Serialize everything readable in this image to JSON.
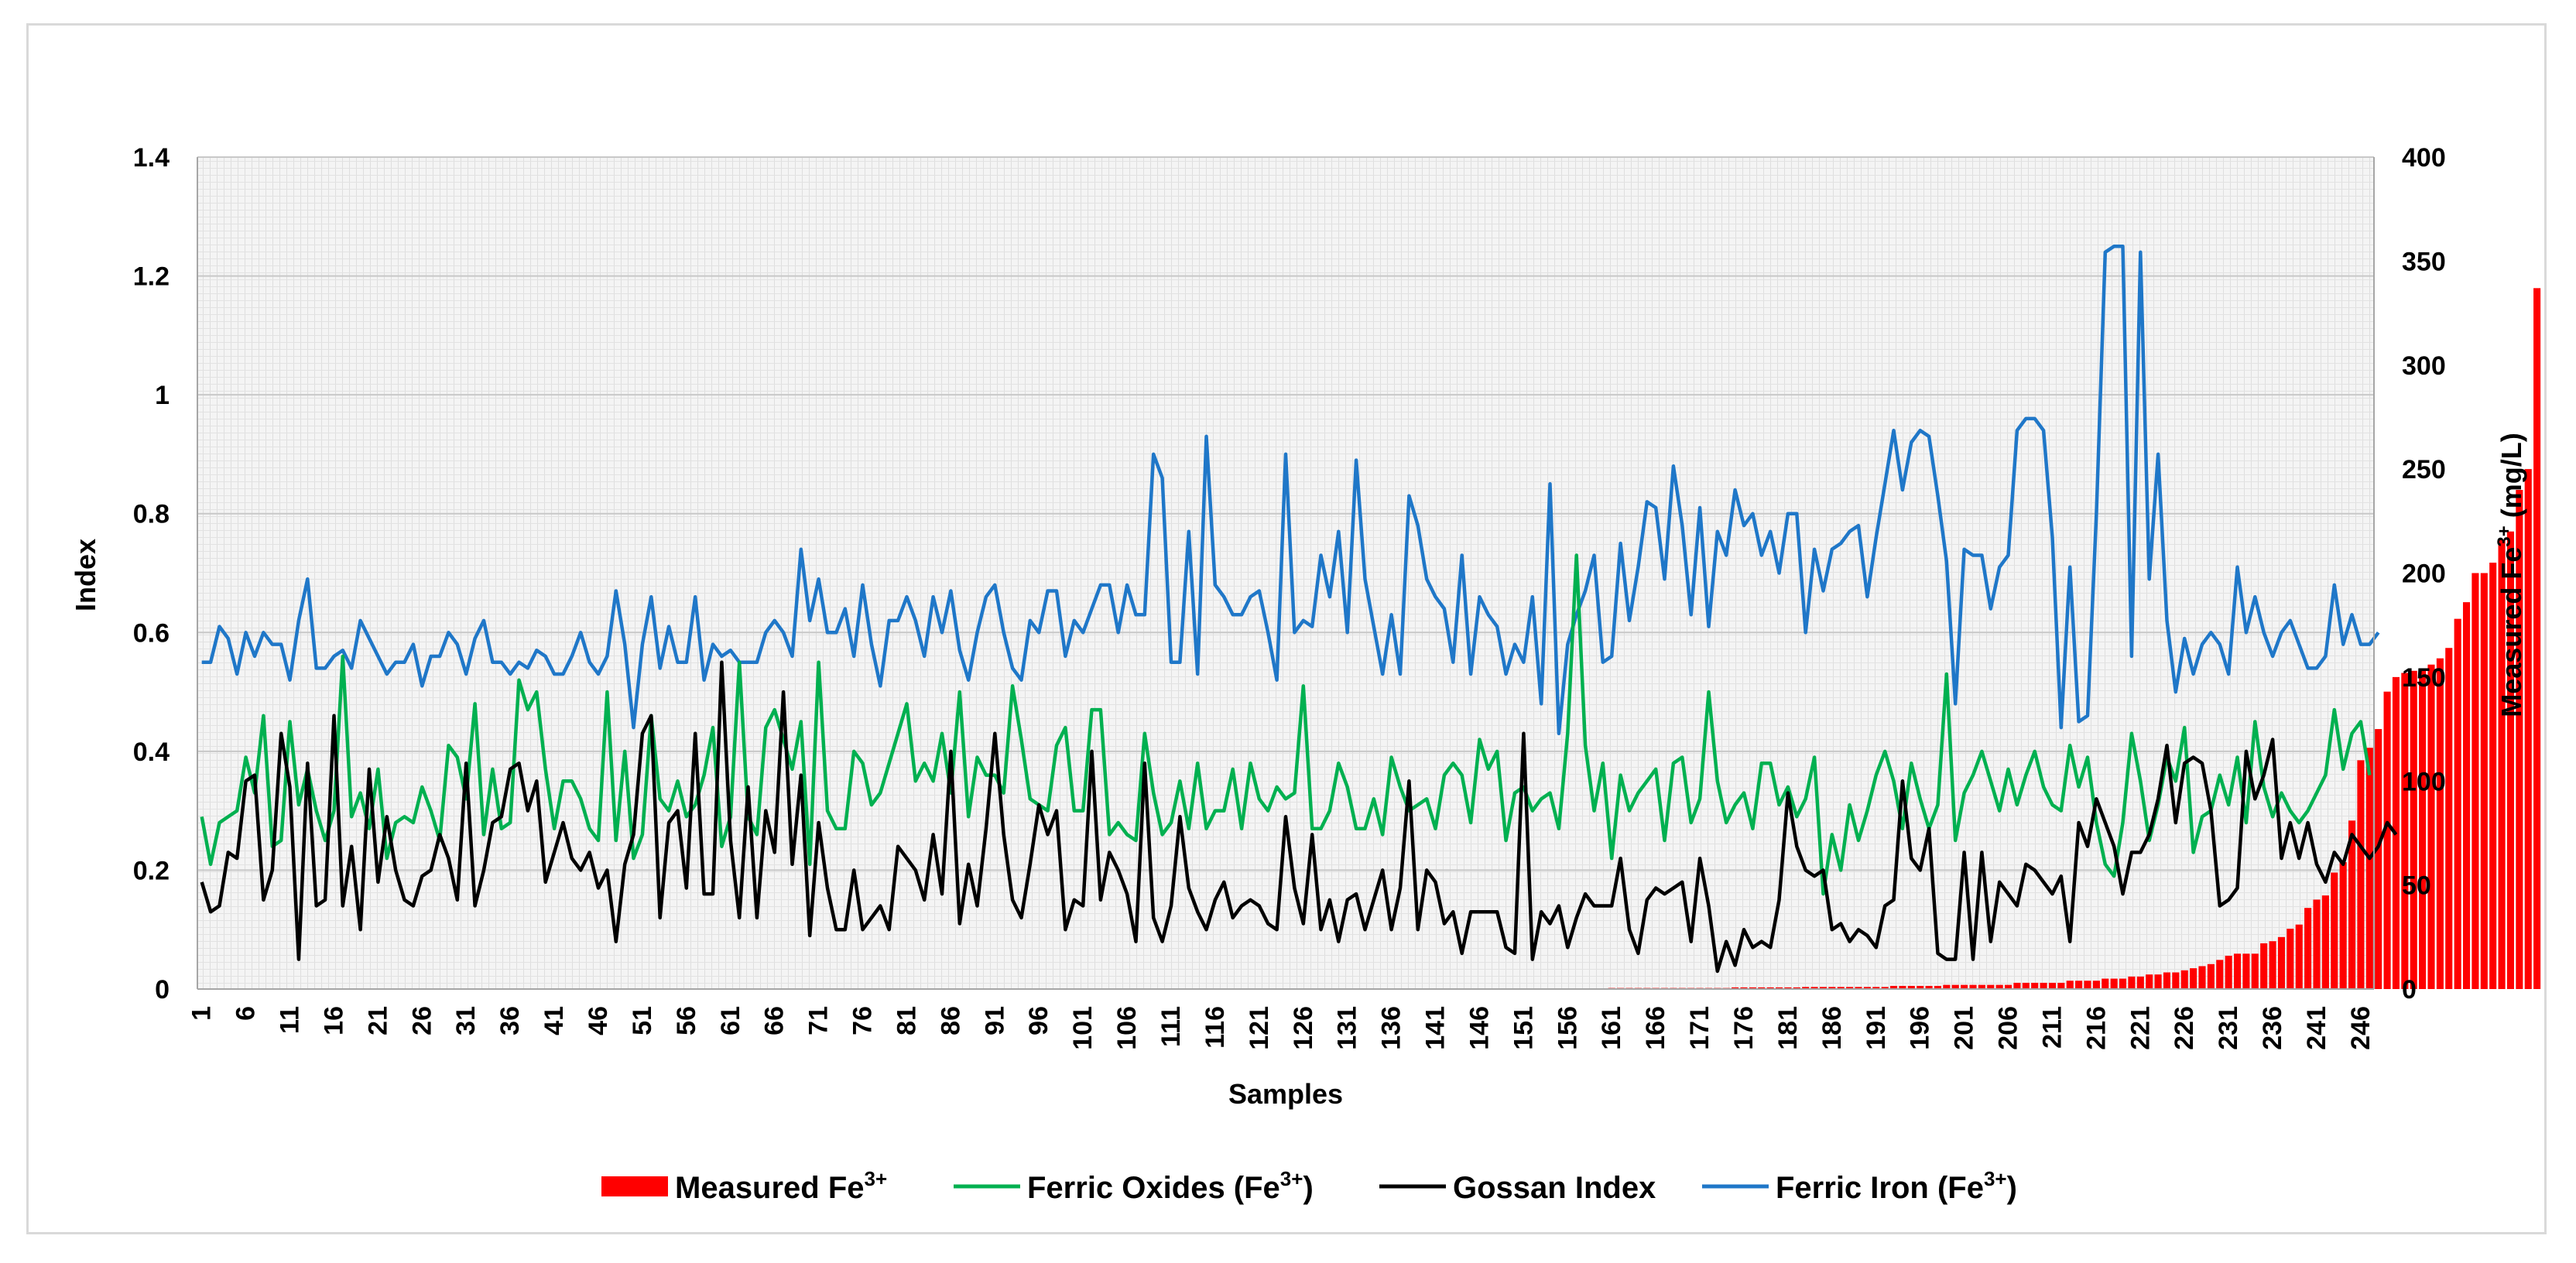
{
  "chart_data": {
    "type": "bar+line",
    "title": "",
    "xlabel": "Samples",
    "ylabel": "Index",
    "y2label": "Measured Fe3+ (mg/L)",
    "y2label_parts": [
      "Measured Fe",
      "3+",
      " (mg/L)"
    ],
    "ylim": [
      0,
      1.4
    ],
    "y2lim": [
      0,
      400
    ],
    "yticks": [
      "0",
      "0.2",
      "0.4",
      "0.6",
      "0.8",
      "1",
      "1.2",
      "1.4"
    ],
    "y2ticks": [
      "0",
      "50",
      "100",
      "150",
      "200",
      "250",
      "300",
      "350",
      "400"
    ],
    "x_count": 247,
    "x_tick_step": 5,
    "x_tick_labels": [
      "1",
      "6",
      "11",
      "16",
      "21",
      "26",
      "31",
      "36",
      "41",
      "46",
      "51",
      "56",
      "61",
      "66",
      "71",
      "76",
      "81",
      "86",
      "91",
      "96",
      "101",
      "106",
      "111",
      "116",
      "121",
      "126",
      "131",
      "136",
      "141",
      "146",
      "151",
      "156",
      "161",
      "166",
      "171",
      "176",
      "181",
      "186",
      "191",
      "196",
      "201",
      "206",
      "211",
      "216",
      "221",
      "226",
      "231",
      "236",
      "241",
      "246"
    ],
    "grid": "on",
    "legend_position": "bottom",
    "legend": [
      {
        "name": "Measured Fe",
        "sup": "3+",
        "suffix": "",
        "kind": "bar",
        "color": "#ff0000"
      },
      {
        "name": "Ferric Oxides (Fe",
        "sup": "3+",
        "suffix": ")",
        "kind": "line",
        "color": "#00b050"
      },
      {
        "name": "Gossan Index",
        "sup": "",
        "suffix": "",
        "kind": "line",
        "color": "#000000"
      },
      {
        "name": "Ferric Iron (Fe",
        "sup": "3+",
        "suffix": ")",
        "kind": "line",
        "color": "#1f77c8"
      }
    ],
    "series": [
      {
        "name": "Ferric Iron (Fe3+)",
        "axis": "left",
        "color": "#1f77c8",
        "values": [
          0.55,
          0.55,
          0.61,
          0.59,
          0.53,
          0.6,
          0.56,
          0.6,
          0.58,
          0.58,
          0.52,
          0.62,
          0.69,
          0.54,
          0.54,
          0.56,
          0.57,
          0.54,
          0.62,
          0.59,
          0.56,
          0.53,
          0.55,
          0.55,
          0.58,
          0.51,
          0.56,
          0.56,
          0.6,
          0.58,
          0.53,
          0.59,
          0.62,
          0.55,
          0.55,
          0.53,
          0.55,
          0.54,
          0.57,
          0.56,
          0.53,
          0.53,
          0.56,
          0.6,
          0.55,
          0.53,
          0.56,
          0.67,
          0.58,
          0.44,
          0.58,
          0.66,
          0.54,
          0.61,
          0.55,
          0.55,
          0.66,
          0.52,
          0.58,
          0.56,
          0.57,
          0.55,
          0.55,
          0.55,
          0.6,
          0.62,
          0.6,
          0.56,
          0.74,
          0.62,
          0.69,
          0.6,
          0.6,
          0.64,
          0.56,
          0.68,
          0.58,
          0.51,
          0.62,
          0.62,
          0.66,
          0.62,
          0.56,
          0.66,
          0.6,
          0.67,
          0.57,
          0.52,
          0.6,
          0.66,
          0.68,
          0.6,
          0.54,
          0.52,
          0.62,
          0.6,
          0.67,
          0.67,
          0.56,
          0.62,
          0.6,
          0.64,
          0.68,
          0.68,
          0.6,
          0.68,
          0.63,
          0.63,
          0.9,
          0.86,
          0.55,
          0.55,
          0.77,
          0.53,
          0.93,
          0.68,
          0.66,
          0.63,
          0.63,
          0.66,
          0.67,
          0.6,
          0.52,
          0.9,
          0.6,
          0.62,
          0.61,
          0.73,
          0.66,
          0.77,
          0.6,
          0.89,
          0.69,
          0.61,
          0.53,
          0.63,
          0.53,
          0.83,
          0.78,
          0.69,
          0.66,
          0.64,
          0.55,
          0.73,
          0.53,
          0.66,
          0.63,
          0.61,
          0.53,
          0.58,
          0.55,
          0.66,
          0.48,
          0.85,
          0.43,
          0.58,
          0.63,
          0.67,
          0.73,
          0.55,
          0.56,
          0.75,
          0.62,
          0.71,
          0.82,
          0.81,
          0.69,
          0.88,
          0.78,
          0.63,
          0.81,
          0.61,
          0.77,
          0.73,
          0.84,
          0.78,
          0.8,
          0.73,
          0.77,
          0.7,
          0.8,
          0.8,
          0.6,
          0.74,
          0.67,
          0.74,
          0.75,
          0.77,
          0.78,
          0.66,
          0.76,
          0.85,
          0.94,
          0.84,
          0.92,
          0.94,
          0.93,
          0.83,
          0.72,
          0.48,
          0.74,
          0.73,
          0.73,
          0.64,
          0.71,
          0.73,
          0.94,
          0.96,
          0.96,
          0.94,
          0.76,
          0.44,
          0.71,
          0.45,
          0.46,
          0.8,
          1.24,
          1.25,
          1.25,
          0.56,
          1.24,
          0.69,
          0.9,
          0.62,
          0.5,
          0.59,
          0.53,
          0.58,
          0.6,
          0.58,
          0.53,
          0.71,
          0.6,
          0.66,
          0.6,
          0.56,
          0.6,
          0.62,
          0.58,
          0.54,
          0.54,
          0.56,
          0.68,
          0.58,
          0.63,
          0.58,
          0.58,
          0.6
        ]
      },
      {
        "name": "Ferric Oxides (Fe3+)",
        "axis": "left",
        "color": "#00b050",
        "values": [
          0.29,
          0.21,
          0.28,
          0.29,
          0.3,
          0.39,
          0.33,
          0.46,
          0.24,
          0.25,
          0.45,
          0.31,
          0.37,
          0.3,
          0.25,
          0.3,
          0.56,
          0.29,
          0.33,
          0.27,
          0.37,
          0.22,
          0.28,
          0.29,
          0.28,
          0.34,
          0.3,
          0.25,
          0.41,
          0.39,
          0.32,
          0.48,
          0.26,
          0.37,
          0.27,
          0.28,
          0.52,
          0.47,
          0.5,
          0.37,
          0.27,
          0.35,
          0.35,
          0.32,
          0.27,
          0.25,
          0.5,
          0.25,
          0.4,
          0.22,
          0.26,
          0.46,
          0.32,
          0.3,
          0.35,
          0.29,
          0.31,
          0.36,
          0.44,
          0.24,
          0.29,
          0.55,
          0.29,
          0.26,
          0.44,
          0.47,
          0.42,
          0.37,
          0.45,
          0.21,
          0.55,
          0.3,
          0.27,
          0.27,
          0.4,
          0.38,
          0.31,
          0.33,
          0.38,
          0.43,
          0.48,
          0.35,
          0.38,
          0.35,
          0.43,
          0.33,
          0.5,
          0.29,
          0.39,
          0.36,
          0.36,
          0.33,
          0.51,
          0.42,
          0.32,
          0.31,
          0.3,
          0.41,
          0.44,
          0.3,
          0.3,
          0.47,
          0.47,
          0.26,
          0.28,
          0.26,
          0.25,
          0.43,
          0.33,
          0.26,
          0.28,
          0.35,
          0.27,
          0.38,
          0.27,
          0.3,
          0.3,
          0.37,
          0.27,
          0.38,
          0.32,
          0.3,
          0.34,
          0.32,
          0.33,
          0.51,
          0.27,
          0.27,
          0.3,
          0.38,
          0.34,
          0.27,
          0.27,
          0.32,
          0.26,
          0.39,
          0.34,
          0.3,
          0.31,
          0.32,
          0.27,
          0.36,
          0.38,
          0.36,
          0.28,
          0.42,
          0.37,
          0.4,
          0.25,
          0.33,
          0.34,
          0.3,
          0.32,
          0.33,
          0.27,
          0.43,
          0.73,
          0.41,
          0.3,
          0.38,
          0.22,
          0.36,
          0.3,
          0.33,
          0.35,
          0.37,
          0.25,
          0.38,
          0.39,
          0.28,
          0.32,
          0.5,
          0.35,
          0.28,
          0.31,
          0.33,
          0.27,
          0.38,
          0.38,
          0.31,
          0.34,
          0.29,
          0.32,
          0.39,
          0.16,
          0.26,
          0.2,
          0.31,
          0.25,
          0.3,
          0.36,
          0.4,
          0.35,
          0.27,
          0.38,
          0.32,
          0.27,
          0.31,
          0.53,
          0.25,
          0.33,
          0.36,
          0.4,
          0.35,
          0.3,
          0.37,
          0.31,
          0.36,
          0.4,
          0.34,
          0.31,
          0.3,
          0.41,
          0.34,
          0.39,
          0.28,
          0.21,
          0.19,
          0.28,
          0.43,
          0.35,
          0.25,
          0.31,
          0.39,
          0.35,
          0.44,
          0.23,
          0.29,
          0.3,
          0.36,
          0.31,
          0.39,
          0.28,
          0.45,
          0.34,
          0.29,
          0.33,
          0.3,
          0.28,
          0.3,
          0.33,
          0.36,
          0.47,
          0.37,
          0.43,
          0.45,
          0.36
        ]
      },
      {
        "name": "Gossan Index",
        "axis": "left",
        "color": "#000000",
        "values": [
          0.18,
          0.13,
          0.14,
          0.23,
          0.22,
          0.35,
          0.36,
          0.15,
          0.2,
          0.43,
          0.34,
          0.05,
          0.38,
          0.14,
          0.15,
          0.46,
          0.14,
          0.24,
          0.1,
          0.37,
          0.18,
          0.29,
          0.2,
          0.15,
          0.14,
          0.19,
          0.2,
          0.26,
          0.22,
          0.15,
          0.38,
          0.14,
          0.2,
          0.28,
          0.29,
          0.37,
          0.38,
          0.3,
          0.35,
          0.18,
          0.23,
          0.28,
          0.22,
          0.2,
          0.23,
          0.17,
          0.2,
          0.08,
          0.21,
          0.26,
          0.43,
          0.46,
          0.12,
          0.28,
          0.3,
          0.17,
          0.43,
          0.16,
          0.16,
          0.55,
          0.25,
          0.12,
          0.34,
          0.12,
          0.3,
          0.23,
          0.5,
          0.21,
          0.36,
          0.09,
          0.28,
          0.17,
          0.1,
          0.1,
          0.2,
          0.1,
          0.12,
          0.14,
          0.1,
          0.24,
          0.22,
          0.2,
          0.15,
          0.26,
          0.16,
          0.4,
          0.11,
          0.21,
          0.14,
          0.27,
          0.43,
          0.26,
          0.15,
          0.12,
          0.21,
          0.31,
          0.26,
          0.3,
          0.1,
          0.15,
          0.14,
          0.4,
          0.15,
          0.23,
          0.2,
          0.16,
          0.08,
          0.38,
          0.12,
          0.08,
          0.14,
          0.29,
          0.17,
          0.13,
          0.1,
          0.15,
          0.18,
          0.12,
          0.14,
          0.15,
          0.14,
          0.11,
          0.1,
          0.29,
          0.17,
          0.11,
          0.26,
          0.1,
          0.15,
          0.08,
          0.15,
          0.16,
          0.1,
          0.15,
          0.2,
          0.1,
          0.17,
          0.35,
          0.1,
          0.2,
          0.18,
          0.11,
          0.13,
          0.06,
          0.13,
          0.13,
          0.13,
          0.13,
          0.07,
          0.06,
          0.43,
          0.05,
          0.13,
          0.11,
          0.14,
          0.07,
          0.12,
          0.16,
          0.14,
          0.14,
          0.14,
          0.22,
          0.1,
          0.06,
          0.15,
          0.17,
          0.16,
          0.17,
          0.18,
          0.08,
          0.22,
          0.14,
          0.03,
          0.08,
          0.04,
          0.1,
          0.07,
          0.08,
          0.07,
          0.15,
          0.33,
          0.24,
          0.2,
          0.19,
          0.2,
          0.1,
          0.11,
          0.08,
          0.1,
          0.09,
          0.07,
          0.14,
          0.15,
          0.35,
          0.22,
          0.2,
          0.27,
          0.06,
          0.05,
          0.05,
          0.23,
          0.05,
          0.23,
          0.08,
          0.18,
          0.16,
          0.14,
          0.21,
          0.2,
          0.18,
          0.16,
          0.19,
          0.08,
          0.28,
          0.24,
          0.32,
          0.28,
          0.24,
          0.16,
          0.23,
          0.23,
          0.26,
          0.32,
          0.41,
          0.28,
          0.38,
          0.39,
          0.38,
          0.3,
          0.14,
          0.15,
          0.17,
          0.4,
          0.32,
          0.36,
          0.42,
          0.22,
          0.28,
          0.22,
          0.28,
          0.21,
          0.18,
          0.23,
          0.21,
          0.26,
          0.24,
          0.22,
          0.24,
          0.28,
          0.26
        ]
      },
      {
        "name": "Measured Fe3+",
        "axis": "right",
        "color": "#ff0000",
        "kind": "bar",
        "values": [
          0.1,
          0.1,
          0.1,
          0.1,
          0.1,
          0.1,
          0.1,
          0.1,
          0.1,
          0.1,
          0.1,
          0.1,
          0.1,
          0.1,
          0.1,
          0.1,
          0.1,
          0.1,
          0.1,
          0.1,
          0.1,
          0.1,
          0.1,
          0.1,
          0.1,
          0.1,
          0.1,
          0.1,
          0.1,
          0.1,
          0.1,
          0.1,
          0.1,
          0.1,
          0.1,
          0.1,
          0.1,
          0.1,
          0.1,
          0.1,
          0.1,
          0.1,
          0.1,
          0.1,
          0.1,
          0.1,
          0.1,
          0.1,
          0.1,
          0.1,
          0.1,
          0.1,
          0.1,
          0.1,
          0.1,
          0.1,
          0.1,
          0.1,
          0.1,
          0.1,
          0.1,
          0.1,
          0.1,
          0.1,
          0.1,
          0.1,
          0.1,
          0.1,
          0.1,
          0.1,
          0.1,
          0.1,
          0.1,
          0.1,
          0.1,
          0.1,
          0.1,
          0.1,
          0.1,
          0.1,
          0.1,
          0.1,
          0.1,
          0.1,
          0.1,
          0.1,
          0.1,
          0.1,
          0.1,
          0.1,
          0.1,
          0.1,
          0.1,
          0.1,
          0.1,
          0.1,
          0.1,
          0.1,
          0.1,
          0.1,
          0.1,
          0.1,
          0.1,
          0.1,
          0.1,
          0.1,
          0.1,
          0.1,
          0.1,
          0.1,
          0.1,
          0.1,
          0.1,
          0.1,
          0.1,
          0.1,
          0.1,
          0.1,
          0.1,
          0.1,
          0.1,
          0.1,
          0.1,
          0.1,
          0.1,
          0.1,
          0.1,
          0.1,
          0.1,
          0.1,
          0.1,
          0.1,
          0.1,
          0.1,
          0.1,
          0.1,
          0.1,
          0.1,
          0.1,
          0.1,
          0.1,
          0.1,
          0.1,
          0.1,
          0.1,
          0.1,
          0.1,
          0.1,
          0.1,
          0.1,
          0.1,
          0.1,
          0.1,
          0.1,
          0.1,
          0.1,
          0.1,
          0.1,
          0.1,
          0.1,
          0.5,
          0.5,
          0.5,
          0.5,
          0.5,
          0.5,
          0.5,
          0.5,
          0.5,
          0.5,
          0.5,
          0.5,
          0.5,
          0.5,
          0.8,
          0.8,
          0.8,
          0.8,
          0.8,
          0.8,
          0.8,
          0.8,
          1,
          1,
          1,
          1,
          1,
          1,
          1,
          1,
          1,
          1,
          1.5,
          1.5,
          1.5,
          1.5,
          1.5,
          1.5,
          2,
          2,
          2,
          2,
          2,
          2,
          2,
          2,
          3,
          3,
          3,
          3,
          3,
          3,
          4,
          4,
          4,
          4,
          5,
          5,
          5,
          6,
          6,
          7,
          7,
          8,
          8,
          9,
          10,
          11,
          12,
          14,
          16,
          17,
          17,
          17,
          22,
          23,
          25,
          29,
          31,
          39,
          43,
          45,
          56,
          61,
          81,
          110,
          116,
          125,
          143,
          150,
          152,
          153,
          154,
          156,
          159,
          164,
          178,
          186,
          200,
          200,
          205,
          216,
          220,
          240,
          250,
          337
        ]
      }
    ]
  }
}
